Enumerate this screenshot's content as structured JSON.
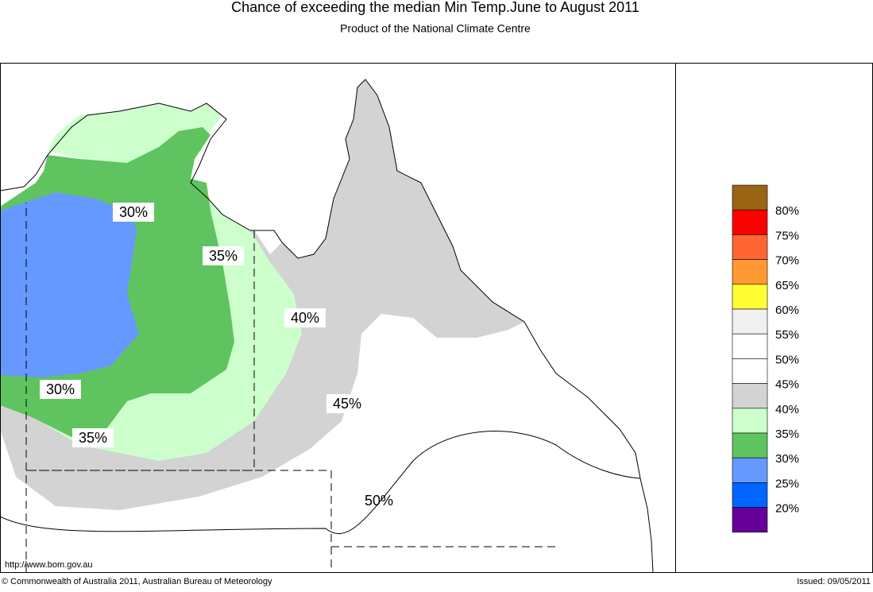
{
  "header": {
    "title": "Chance of exceeding the median Min Temp.June to August 2011",
    "subtitle": "Product of the National Climate Centre"
  },
  "contour_labels": [
    "30%",
    "35%",
    "40%",
    "30%",
    "35%",
    "45%",
    "50%"
  ],
  "legend": {
    "colors": [
      "#996515",
      "#ff0000",
      "#ff6633",
      "#ff9933",
      "#ffff33",
      "#f0f0f0",
      "#ffffff",
      "#ffffff",
      "#d3d3d3",
      "#ccffcc",
      "#5fc45f",
      "#6699ff",
      "#0066ff",
      "#660099"
    ],
    "labels": [
      "80%",
      "75%",
      "70%",
      "65%",
      "60%",
      "55%",
      "50%",
      "45%",
      "40%",
      "35%",
      "30%",
      "25%",
      "20%"
    ]
  },
  "footer": {
    "url": "http://www.bom.gov.au",
    "copyright": "© Commonwealth of Australia 2011, Australian Bureau of Meteorology",
    "issued": "Issued: 09/05/2011"
  }
}
